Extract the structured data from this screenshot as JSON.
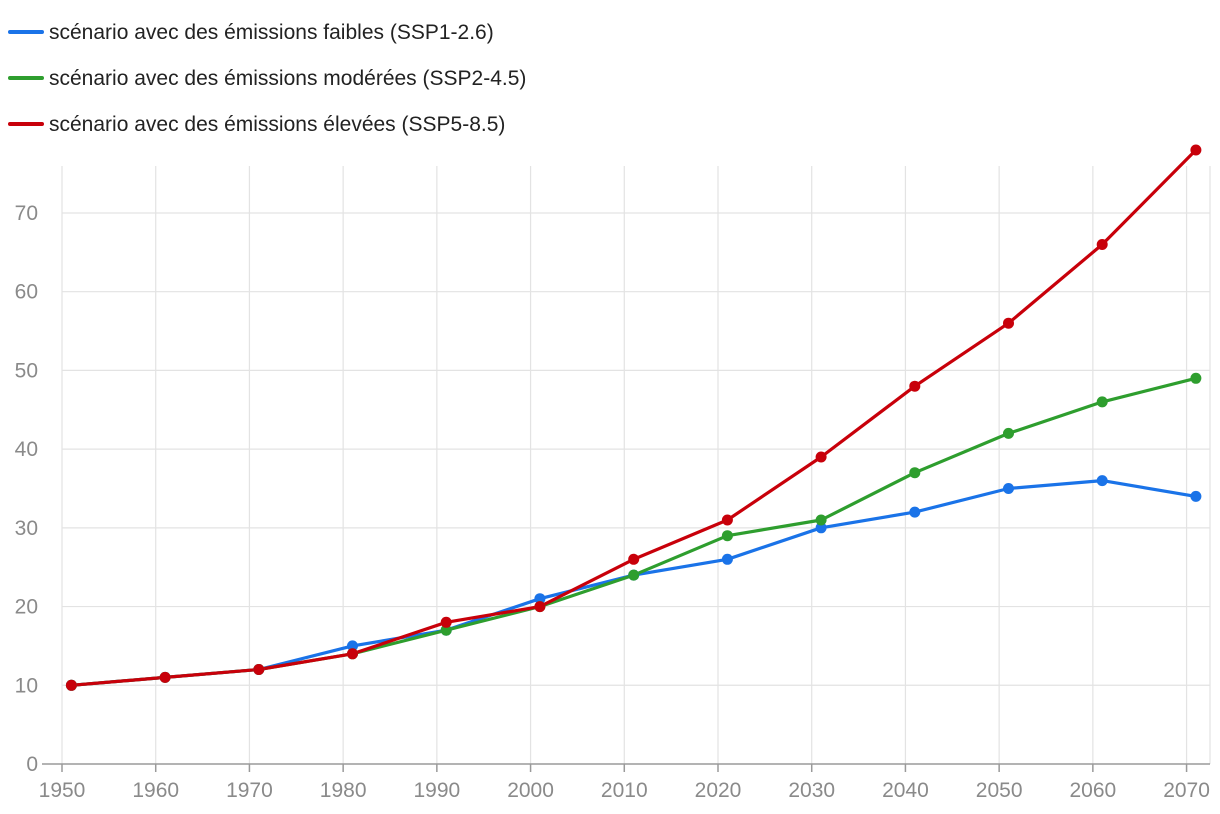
{
  "chart_data": {
    "type": "line",
    "title": "",
    "xlabel": "",
    "ylabel": "",
    "x": [
      1951,
      1961,
      1971,
      1981,
      1991,
      2001,
      2011,
      2021,
      2031,
      2041,
      2051,
      2061,
      2071
    ],
    "xlim": [
      1950,
      2072.5
    ],
    "ylim": [
      0,
      78
    ],
    "x_ticks": [
      1950,
      1960,
      1970,
      1980,
      1990,
      2000,
      2010,
      2020,
      2030,
      2040,
      2050,
      2060,
      2070
    ],
    "x_tick_labels": [
      "1950",
      "1960",
      "1970",
      "1980",
      "1990",
      "2000",
      "2010",
      "2020",
      "2030",
      "2040",
      "2050",
      "2060",
      "2070"
    ],
    "y_ticks": [
      0,
      10,
      20,
      30,
      40,
      50,
      60,
      70
    ],
    "y_tick_labels": [
      "0",
      "10",
      "20",
      "30",
      "40",
      "50",
      "60",
      "70"
    ],
    "grid": true,
    "legend_position": "top-left",
    "series": [
      {
        "name": "scénario avec des émissions faibles (SSP1-2.6)",
        "color": "#1a73e8",
        "values": [
          10,
          11,
          12,
          15,
          17,
          21,
          24,
          26,
          30,
          32,
          35,
          36,
          34
        ]
      },
      {
        "name": "scénario avec des émissions modérées (SSP2-4.5)",
        "color": "#2e9e2e",
        "values": [
          10,
          11,
          12,
          14,
          17,
          20,
          24,
          29,
          31,
          37,
          42,
          46,
          49
        ]
      },
      {
        "name": "scénario avec des émissions élevées (SSP5-8.5)",
        "color": "#c8000a",
        "values": [
          10,
          11,
          12,
          14,
          18,
          20,
          26,
          31,
          39,
          48,
          56,
          66,
          78
        ]
      }
    ]
  }
}
